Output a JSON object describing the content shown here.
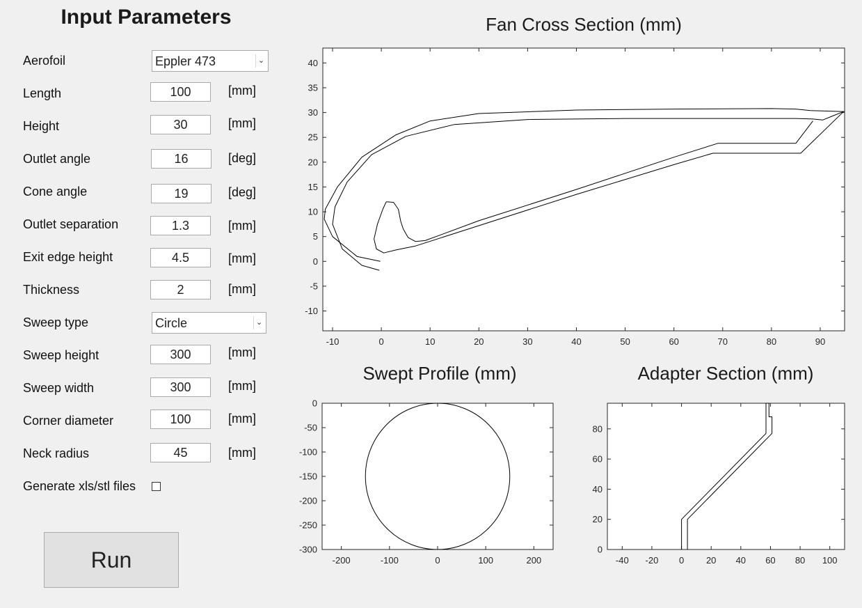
{
  "panel": {
    "title": "Input Parameters",
    "aerofoil": {
      "label": "Aerofoil",
      "value": "Eppler 473"
    },
    "length": {
      "label": "Length",
      "value": "100",
      "unit": "[mm]"
    },
    "height": {
      "label": "Height",
      "value": "30",
      "unit": "[mm]"
    },
    "outlet_angle": {
      "label": "Outlet angle",
      "value": "16",
      "unit": "[deg]"
    },
    "cone_angle": {
      "label": "Cone angle",
      "value": "19",
      "unit": "[deg]"
    },
    "outlet_separation": {
      "label": "Outlet separation",
      "value": "1.3",
      "unit": "[mm]"
    },
    "exit_edge_height": {
      "label": "Exit edge height",
      "value": "4.5",
      "unit": "[mm]"
    },
    "thickness": {
      "label": "Thickness",
      "value": "2",
      "unit": "[mm]"
    },
    "sweep_type": {
      "label": "Sweep type",
      "value": "Circle"
    },
    "sweep_height": {
      "label": "Sweep height",
      "value": "300",
      "unit": "[mm]"
    },
    "sweep_width": {
      "label": "Sweep width",
      "value": "300",
      "unit": "[mm]"
    },
    "corner_diameter": {
      "label": "Corner diameter",
      "value": "100",
      "unit": "[mm]"
    },
    "neck_radius": {
      "label": "Neck radius",
      "value": "45",
      "unit": "[mm]"
    },
    "generate_files": {
      "label": "Generate xls/stl files",
      "checked": false
    },
    "run_label": "Run"
  },
  "chart_data": [
    {
      "type": "line",
      "title": "Fan Cross Section (mm)",
      "xlim": [
        -12,
        95
      ],
      "ylim": [
        -14,
        43
      ],
      "xticks": [
        -10,
        0,
        10,
        20,
        30,
        40,
        50,
        60,
        70,
        80,
        90
      ],
      "yticks": [
        -10,
        -5,
        0,
        5,
        10,
        15,
        20,
        25,
        30,
        35,
        40
      ],
      "series": [
        {
          "x": [
            -0.2,
            -5,
            -10,
            -11.7,
            -11.5,
            -9,
            -4,
            3,
            10,
            20,
            40,
            60,
            80,
            85,
            88,
            95
          ],
          "y": [
            0,
            1,
            5,
            8.5,
            10.5,
            15,
            21,
            25.5,
            28.3,
            29.8,
            30.5,
            30.7,
            30.8,
            30.7,
            30.4,
            30.2
          ]
        },
        {
          "x": [
            -0.4,
            -4,
            -8,
            -10,
            -9.5,
            -7,
            -2,
            5,
            15,
            30,
            50,
            70,
            85,
            88.5,
            90.5,
            92.5,
            94.8
          ],
          "y": [
            -1.8,
            -0.8,
            2.5,
            7.5,
            11,
            16,
            21.5,
            25.2,
            27.6,
            28.6,
            28.8,
            28.8,
            28.8,
            28.7,
            28.5,
            29.3,
            30.2
          ]
        },
        {
          "x": [
            94.8,
            86,
            68,
            60,
            40,
            20,
            7,
            3,
            0.5,
            -1,
            -1.5,
            -0.8,
            0.3,
            1
          ],
          "y": [
            30.2,
            21.8,
            21.8,
            19.5,
            13.5,
            7.2,
            3.1,
            2.3,
            1.7,
            2.5,
            4.5,
            7.5,
            10.5,
            12
          ]
        },
        {
          "x": [
            88.5,
            85,
            69,
            60,
            40,
            20,
            9,
            7,
            5.5,
            4.5,
            4,
            3.5,
            2.5,
            1
          ],
          "y": [
            28.3,
            23.8,
            23.8,
            21,
            14.5,
            8.2,
            4.2,
            4,
            4.8,
            6.5,
            8,
            10.5,
            11.9,
            12
          ]
        }
      ]
    },
    {
      "type": "line",
      "title": "Swept Profile (mm)",
      "xlim": [
        -240,
        240
      ],
      "ylim": [
        -300,
        0
      ],
      "xticks": [
        -200,
        -100,
        0,
        100,
        200
      ],
      "yticks": [
        0,
        -50,
        -100,
        -150,
        -200,
        -250,
        -300
      ],
      "series": [
        {
          "shape": "circle",
          "center": [
            0,
            -150
          ],
          "radius": 150
        }
      ]
    },
    {
      "type": "line",
      "title": "Adapter Section (mm)",
      "xlim": [
        -50,
        110
      ],
      "ylim": [
        0,
        97
      ],
      "xticks": [
        -40,
        -20,
        0,
        20,
        40,
        60,
        80,
        100
      ],
      "yticks": [
        0,
        20,
        40,
        60,
        80
      ],
      "series": [
        {
          "x": [
            0,
            0,
            57,
            57,
            58
          ],
          "y": [
            0,
            20,
            77,
            97,
            97
          ]
        },
        {
          "x": [
            4,
            4,
            61,
            61,
            59,
            59,
            58
          ],
          "y": [
            0,
            20,
            77,
            88,
            88,
            97,
            97
          ]
        }
      ]
    }
  ]
}
